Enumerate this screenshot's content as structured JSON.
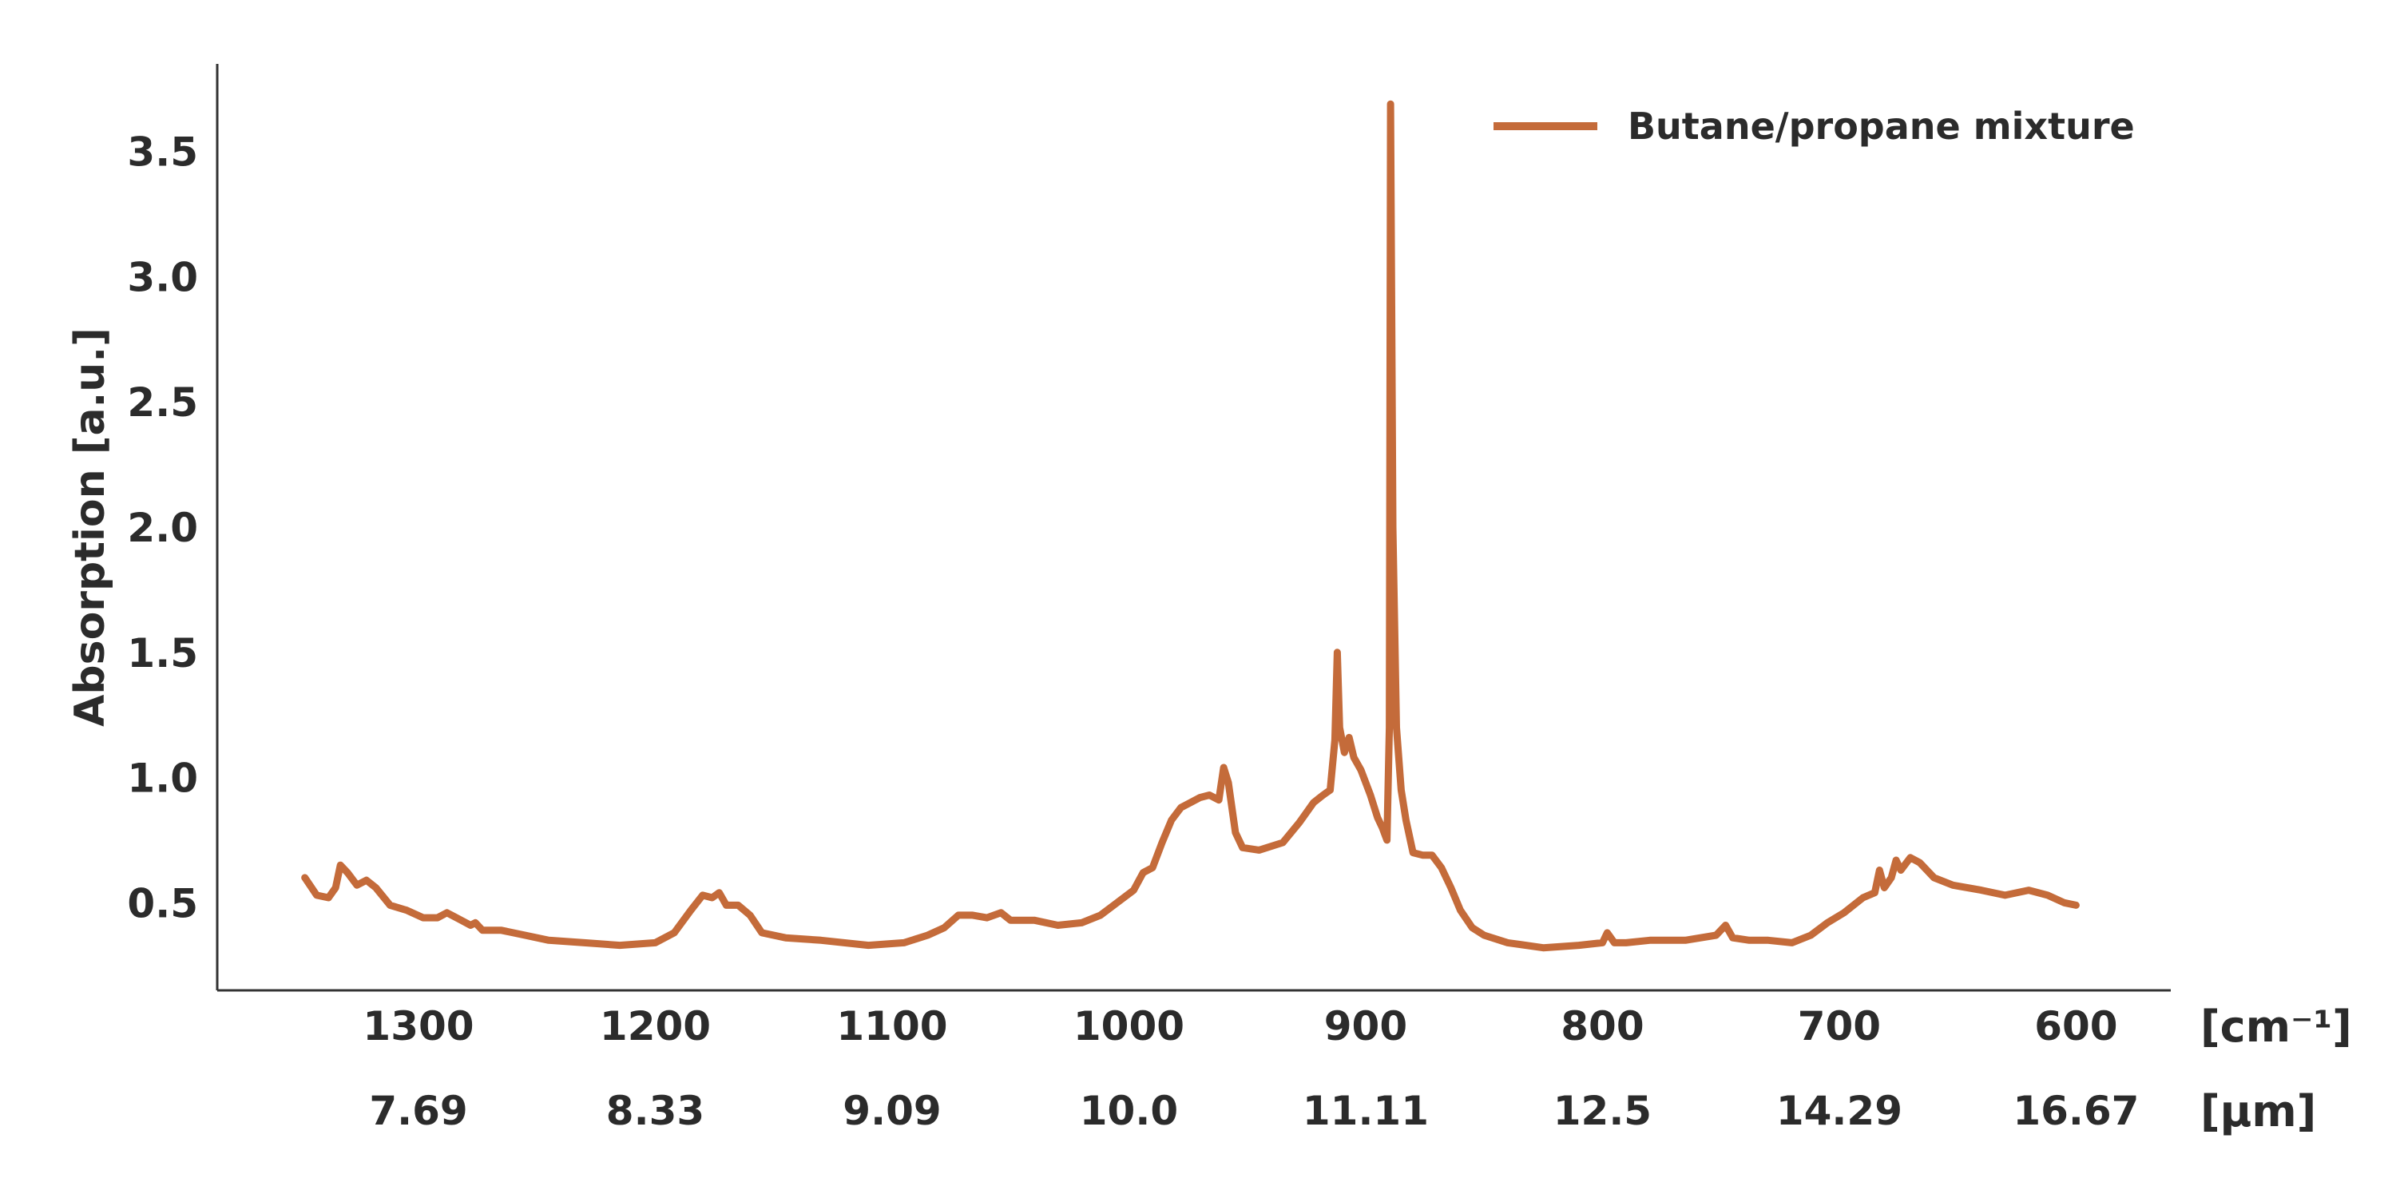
{
  "chart_data": {
    "type": "line",
    "title": "",
    "ylabel": "Absorption [a.u.]",
    "xlabel": "",
    "x_unit_label": "[cm⁻¹]",
    "x2_unit_label": "[μm]",
    "xlim": [
      1385,
      560
    ],
    "ylim": [
      0.15,
      3.85
    ],
    "x_reversed": true,
    "grid": false,
    "legend_position": "top-right",
    "x_ticks": [
      1300,
      1200,
      1100,
      1000,
      900,
      800,
      700,
      600
    ],
    "x_tick_labels": [
      "1300",
      "1200",
      "1100",
      "1000",
      "900",
      "800",
      "700",
      "600"
    ],
    "x2_tick_labels": [
      "7.69",
      "8.33",
      "9.09",
      "10.0",
      "11.11",
      "12.5",
      "14.29",
      "16.67"
    ],
    "y_ticks": [
      0.5,
      1.0,
      1.5,
      2.0,
      2.5,
      3.0,
      3.5
    ],
    "y_tick_labels": [
      "0.5",
      "1.0",
      "1.5",
      "2.0",
      "2.5",
      "3.0",
      "3.5"
    ],
    "series": [
      {
        "name": "Butane/propane mixture",
        "color": "#c46b3a",
        "points": [
          [
            1348,
            0.6
          ],
          [
            1343,
            0.53
          ],
          [
            1338,
            0.52
          ],
          [
            1335,
            0.56
          ],
          [
            1333,
            0.65
          ],
          [
            1330,
            0.62
          ],
          [
            1326,
            0.57
          ],
          [
            1322,
            0.59
          ],
          [
            1318,
            0.56
          ],
          [
            1312,
            0.49
          ],
          [
            1305,
            0.47
          ],
          [
            1298,
            0.44
          ],
          [
            1292,
            0.44
          ],
          [
            1288,
            0.46
          ],
          [
            1282,
            0.43
          ],
          [
            1278,
            0.41
          ],
          [
            1276,
            0.42
          ],
          [
            1273,
            0.39
          ],
          [
            1265,
            0.39
          ],
          [
            1255,
            0.37
          ],
          [
            1245,
            0.35
          ],
          [
            1230,
            0.34
          ],
          [
            1215,
            0.33
          ],
          [
            1200,
            0.34
          ],
          [
            1192,
            0.38
          ],
          [
            1185,
            0.47
          ],
          [
            1180,
            0.53
          ],
          [
            1176,
            0.52
          ],
          [
            1173,
            0.54
          ],
          [
            1170,
            0.49
          ],
          [
            1165,
            0.49
          ],
          [
            1160,
            0.45
          ],
          [
            1155,
            0.38
          ],
          [
            1145,
            0.36
          ],
          [
            1130,
            0.35
          ],
          [
            1110,
            0.33
          ],
          [
            1095,
            0.34
          ],
          [
            1085,
            0.37
          ],
          [
            1078,
            0.4
          ],
          [
            1072,
            0.45
          ],
          [
            1066,
            0.45
          ],
          [
            1060,
            0.44
          ],
          [
            1054,
            0.46
          ],
          [
            1050,
            0.43
          ],
          [
            1045,
            0.43
          ],
          [
            1040,
            0.43
          ],
          [
            1030,
            0.41
          ],
          [
            1020,
            0.42
          ],
          [
            1012,
            0.45
          ],
          [
            1005,
            0.5
          ],
          [
            998,
            0.55
          ],
          [
            994,
            0.62
          ],
          [
            990,
            0.64
          ],
          [
            986,
            0.74
          ],
          [
            982,
            0.83
          ],
          [
            978,
            0.88
          ],
          [
            974,
            0.9
          ],
          [
            970,
            0.92
          ],
          [
            966,
            0.93
          ],
          [
            962,
            0.91
          ],
          [
            960,
            1.04
          ],
          [
            958,
            0.98
          ],
          [
            955,
            0.78
          ],
          [
            952,
            0.72
          ],
          [
            945,
            0.71
          ],
          [
            935,
            0.74
          ],
          [
            928,
            0.82
          ],
          [
            922,
            0.9
          ],
          [
            918,
            0.93
          ],
          [
            915,
            0.95
          ],
          [
            913,
            1.15
          ],
          [
            912,
            1.5
          ],
          [
            911,
            1.2
          ],
          [
            909,
            1.1
          ],
          [
            907,
            1.16
          ],
          [
            905,
            1.08
          ],
          [
            902,
            1.03
          ],
          [
            898,
            0.93
          ],
          [
            895,
            0.84
          ],
          [
            893,
            0.8
          ],
          [
            891,
            0.75
          ],
          [
            890,
            1.2
          ],
          [
            889.5,
            3.69
          ],
          [
            888.5,
            2.0
          ],
          [
            887,
            1.2
          ],
          [
            885,
            0.95
          ],
          [
            883,
            0.83
          ],
          [
            880,
            0.7
          ],
          [
            876,
            0.69
          ],
          [
            872,
            0.69
          ],
          [
            868,
            0.64
          ],
          [
            864,
            0.56
          ],
          [
            860,
            0.47
          ],
          [
            855,
            0.4
          ],
          [
            850,
            0.37
          ],
          [
            840,
            0.34
          ],
          [
            825,
            0.32
          ],
          [
            810,
            0.33
          ],
          [
            800,
            0.34
          ],
          [
            798,
            0.38
          ],
          [
            795,
            0.34
          ],
          [
            790,
            0.34
          ],
          [
            780,
            0.35
          ],
          [
            765,
            0.35
          ],
          [
            752,
            0.37
          ],
          [
            748,
            0.41
          ],
          [
            745,
            0.36
          ],
          [
            738,
            0.35
          ],
          [
            730,
            0.35
          ],
          [
            720,
            0.34
          ],
          [
            712,
            0.37
          ],
          [
            705,
            0.42
          ],
          [
            698,
            0.46
          ],
          [
            690,
            0.52
          ],
          [
            685,
            0.54
          ],
          [
            683,
            0.63
          ],
          [
            681,
            0.56
          ],
          [
            678,
            0.6
          ],
          [
            676,
            0.67
          ],
          [
            674,
            0.63
          ],
          [
            670,
            0.68
          ],
          [
            666,
            0.66
          ],
          [
            660,
            0.6
          ],
          [
            652,
            0.57
          ],
          [
            640,
            0.55
          ],
          [
            630,
            0.53
          ],
          [
            620,
            0.55
          ],
          [
            612,
            0.53
          ],
          [
            605,
            0.5
          ],
          [
            600,
            0.49
          ]
        ]
      }
    ]
  }
}
